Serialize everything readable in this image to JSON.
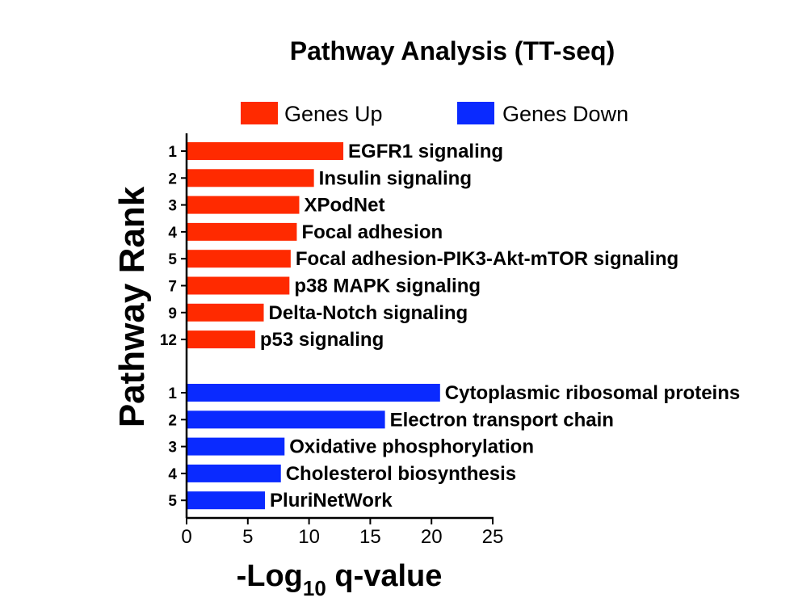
{
  "chart_data": {
    "type": "bar",
    "orientation": "horizontal",
    "title": "Pathway Analysis (TT-seq)",
    "xlabel": {
      "prefix": "-Log",
      "subscript": "10",
      "suffix": " q-value"
    },
    "ylabel": "Pathway Rank",
    "xlim": [
      0,
      25
    ],
    "xticks": [
      "0",
      "5",
      "10",
      "15",
      "20",
      "25"
    ],
    "legend": {
      "placement": "top",
      "entries": [
        "Genes Up",
        "Genes Down"
      ]
    },
    "series": [
      {
        "name": "Genes Up",
        "color": "#ff2a00",
        "ranks": [
          "1",
          "2",
          "3",
          "4",
          "5",
          "7",
          "9",
          "12"
        ],
        "categories": [
          "EGFR1 signaling",
          "Insulin signaling",
          "XPodNet",
          "Focal adhesion",
          "Focal adhesion-PIK3-Akt-mTOR signaling",
          "p38 MAPK signaling",
          "Delta-Notch signaling",
          "p53 signaling"
        ],
        "values": [
          12.8,
          10.4,
          9.2,
          9.0,
          8.5,
          8.4,
          6.3,
          5.6
        ]
      },
      {
        "name": "Genes Down",
        "color": "#0a2aff",
        "ranks": [
          "1",
          "2",
          "3",
          "4",
          "5"
        ],
        "categories": [
          "Cytoplasmic ribosomal proteins",
          "Electron transport chain",
          "Oxidative phosphorylation",
          "Cholesterol biosynthesis",
          "PluriNetWork"
        ],
        "values": [
          20.7,
          16.2,
          8.0,
          7.7,
          6.4
        ]
      }
    ]
  }
}
